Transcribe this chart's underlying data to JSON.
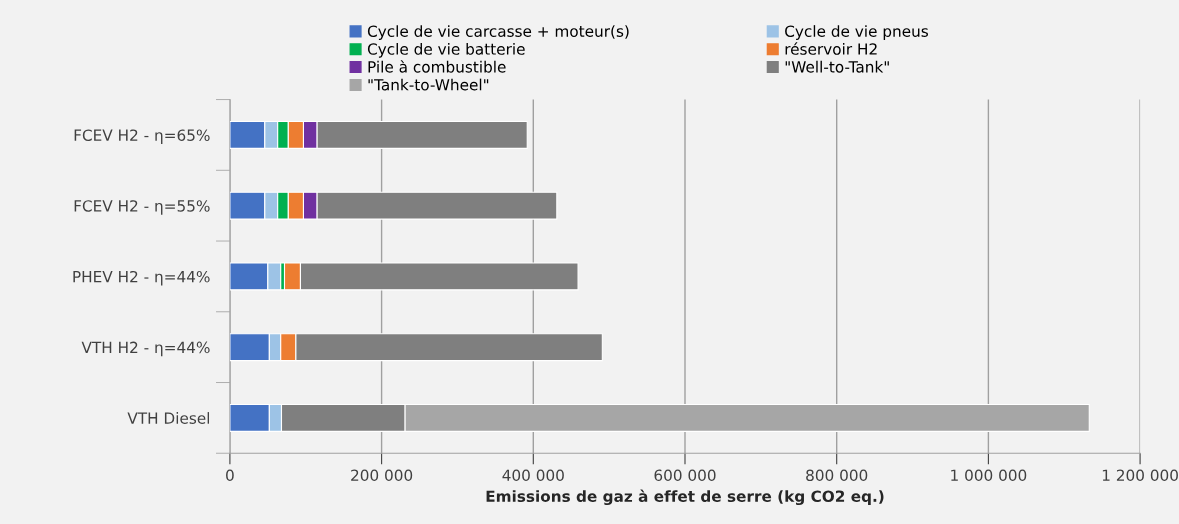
{
  "chart_data": {
    "type": "bar",
    "orientation": "horizontal",
    "stacked": true,
    "categories": [
      "FCEV H2 - η=65%",
      "FCEV H2 - η=55%",
      "PHEV H2 - η=44%",
      "VTH H2 - η=44%",
      "VTH Diesel"
    ],
    "series": [
      {
        "name": "Cycle de vie carcasse + moteur(s)",
        "color": "#4472c4",
        "values": [
          46000,
          46000,
          50000,
          52000,
          52000
        ]
      },
      {
        "name": "Cycle de vie pneus",
        "color": "#9dc3e6",
        "values": [
          17000,
          17000,
          17000,
          15000,
          16000
        ]
      },
      {
        "name": "Cycle de vie batterie",
        "color": "#00b050",
        "values": [
          14000,
          14000,
          5000,
          null,
          null
        ]
      },
      {
        "name": "réservoir H2",
        "color": "#ed7d31",
        "values": [
          20000,
          20000,
          21000,
          20000,
          null
        ]
      },
      {
        "name": "Pile à combustible",
        "color": "#7030a0",
        "values": [
          18000,
          18000,
          null,
          null,
          null
        ]
      },
      {
        "name": "\"Well-to-Tank\"",
        "color": "#7f7f7f",
        "values": [
          277000,
          316000,
          366000,
          404000,
          163000
        ]
      },
      {
        "name": "\"Tank-to-Wheel\"",
        "color": "#a6a6a6",
        "values": [
          null,
          null,
          null,
          null,
          902000
        ]
      }
    ],
    "xlabel": "Emissions de gaz à effet de serre (kg CO2 eq.)",
    "xlim": [
      0,
      1200000
    ],
    "xticks": [
      0,
      {
        "value": 200000,
        "label": "200 000"
      },
      {
        "value": 400000,
        "label": "400 000"
      },
      {
        "value": 600000,
        "label": "600 000"
      },
      {
        "value": 800000,
        "label": "800 000"
      },
      {
        "value": 1000000,
        "label": "1 000 000"
      },
      {
        "value": 1200000,
        "label": "1 200 000"
      }
    ],
    "grid": "x",
    "legend": "top"
  }
}
